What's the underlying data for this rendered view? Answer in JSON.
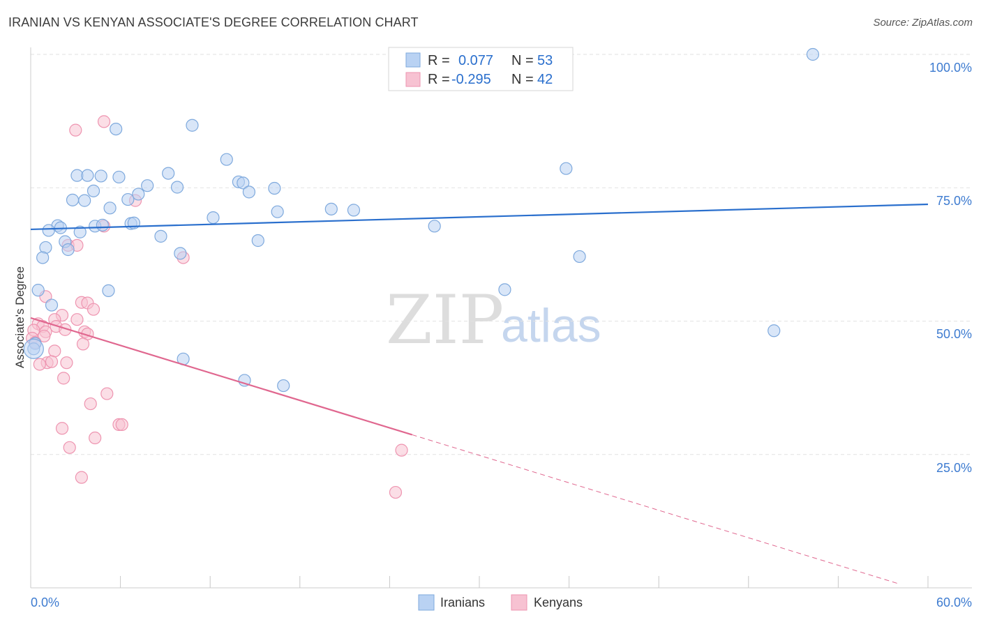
{
  "header": {
    "title": "IRANIAN VS KENYAN ASSOCIATE'S DEGREE CORRELATION CHART",
    "source": "Source: ZipAtlas.com"
  },
  "watermark": {
    "part1": "ZIP",
    "part2": "atlas"
  },
  "colors": {
    "iranians_fill": "#b9d2f3",
    "iranians_stroke": "#7ea9dd",
    "iranians_line": "#2a6fcd",
    "kenyans_fill": "#f7c2d2",
    "kenyans_stroke": "#ee94b0",
    "kenyans_line": "#e0678f",
    "axis_text": "#3d7bd0",
    "grid": "#e2e2e2"
  },
  "stats": [
    {
      "r_label": "R =",
      "r_value": "0.077",
      "n_label": "N =",
      "n_value": "53"
    },
    {
      "r_label": "R =",
      "r_value": "-0.295",
      "n_label": "N =",
      "n_value": "42"
    }
  ],
  "legend": {
    "iranians": "Iranians",
    "kenyans": "Kenyans"
  },
  "chart_data": {
    "type": "scatter",
    "title": "IRANIAN VS KENYAN ASSOCIATE'S DEGREE CORRELATION CHART",
    "xlabel": "",
    "ylabel": "Associate's Degree",
    "xlim": [
      0,
      60
    ],
    "ylim": [
      0,
      103
    ],
    "x_tick_labels": [
      "0.0%",
      "60.0%"
    ],
    "y_ticks": [
      25,
      50,
      75,
      100
    ],
    "y_tick_labels": [
      "25.0%",
      "50.0%",
      "75.0%",
      "100.0%"
    ],
    "grid": true,
    "series": [
      {
        "name": "Iranians",
        "r": 0.077,
        "n": 53,
        "trend": {
          "x": [
            0,
            60
          ],
          "y": [
            67.2,
            71.9
          ],
          "dashed_from": null
        },
        "points": [
          [
            52.3,
            100.0
          ],
          [
            5.7,
            86.0
          ],
          [
            10.8,
            86.7
          ],
          [
            13.1,
            80.3
          ],
          [
            35.8,
            78.6
          ],
          [
            3.1,
            77.3
          ],
          [
            3.8,
            77.3
          ],
          [
            4.7,
            77.2
          ],
          [
            5.9,
            77.0
          ],
          [
            9.2,
            77.7
          ],
          [
            13.9,
            76.1
          ],
          [
            14.2,
            75.9
          ],
          [
            7.8,
            75.4
          ],
          [
            9.8,
            75.1
          ],
          [
            16.3,
            74.9
          ],
          [
            4.2,
            74.4
          ],
          [
            14.6,
            74.2
          ],
          [
            7.2,
            73.8
          ],
          [
            2.8,
            72.7
          ],
          [
            3.6,
            72.6
          ],
          [
            6.5,
            72.8
          ],
          [
            5.3,
            71.2
          ],
          [
            20.1,
            71.0
          ],
          [
            21.6,
            70.8
          ],
          [
            16.5,
            70.5
          ],
          [
            12.2,
            69.4
          ],
          [
            6.7,
            68.3
          ],
          [
            6.9,
            68.4
          ],
          [
            4.3,
            67.8
          ],
          [
            1.8,
            67.9
          ],
          [
            27.0,
            67.8
          ],
          [
            1.2,
            67.0
          ],
          [
            2.0,
            67.5
          ],
          [
            3.3,
            66.7
          ],
          [
            8.7,
            65.9
          ],
          [
            15.2,
            65.1
          ],
          [
            2.3,
            64.9
          ],
          [
            1.0,
            63.8
          ],
          [
            2.5,
            63.4
          ],
          [
            10.0,
            62.7
          ],
          [
            0.8,
            61.9
          ],
          [
            36.7,
            62.1
          ],
          [
            0.5,
            55.8
          ],
          [
            5.2,
            55.7
          ],
          [
            31.7,
            55.9
          ],
          [
            1.4,
            53.0
          ],
          [
            49.7,
            48.2
          ],
          [
            0.3,
            45.8
          ],
          [
            0.2,
            44.8
          ],
          [
            10.2,
            42.9
          ],
          [
            14.3,
            38.9
          ],
          [
            16.9,
            37.9
          ],
          [
            4.8,
            68.0
          ]
        ]
      },
      {
        "name": "Kenyans",
        "r": -0.295,
        "n": 42,
        "trend": {
          "x": [
            0,
            25.5,
            58
          ],
          "y": [
            50.6,
            28.7,
            0.8
          ],
          "dashed_from": 25.5
        },
        "points": [
          [
            4.9,
            87.4
          ],
          [
            3.0,
            85.8
          ],
          [
            7.0,
            72.6
          ],
          [
            4.9,
            67.8
          ],
          [
            2.5,
            64.2
          ],
          [
            3.1,
            64.2
          ],
          [
            10.2,
            61.9
          ],
          [
            1.0,
            54.6
          ],
          [
            3.4,
            53.5
          ],
          [
            3.8,
            53.4
          ],
          [
            4.2,
            52.2
          ],
          [
            2.1,
            51.1
          ],
          [
            3.1,
            50.3
          ],
          [
            1.6,
            50.3
          ],
          [
            0.5,
            49.5
          ],
          [
            0.8,
            49.0
          ],
          [
            1.7,
            49.0
          ],
          [
            0.2,
            48.3
          ],
          [
            1.0,
            48.0
          ],
          [
            2.3,
            48.4
          ],
          [
            3.6,
            48.0
          ],
          [
            3.8,
            47.6
          ],
          [
            0.9,
            47.2
          ],
          [
            0.1,
            46.8
          ],
          [
            0.3,
            46.0
          ],
          [
            3.5,
            45.7
          ],
          [
            1.6,
            44.4
          ],
          [
            1.1,
            42.2
          ],
          [
            1.4,
            42.4
          ],
          [
            2.4,
            42.2
          ],
          [
            0.6,
            41.9
          ],
          [
            2.2,
            39.3
          ],
          [
            5.1,
            36.4
          ],
          [
            4.0,
            34.5
          ],
          [
            5.9,
            30.6
          ],
          [
            6.1,
            30.6
          ],
          [
            2.1,
            29.9
          ],
          [
            4.3,
            28.1
          ],
          [
            2.6,
            26.3
          ],
          [
            24.8,
            25.8
          ],
          [
            3.4,
            20.7
          ],
          [
            24.4,
            17.9
          ]
        ]
      }
    ]
  }
}
